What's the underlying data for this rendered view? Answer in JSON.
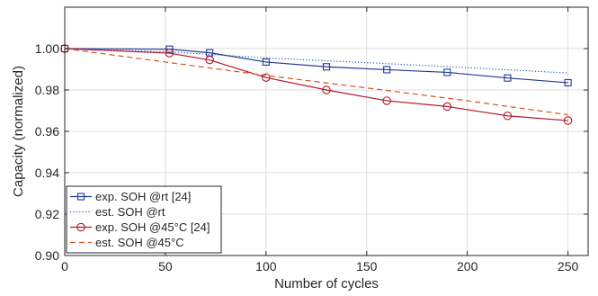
{
  "chart_data": {
    "type": "line",
    "xlabel": "Number of cycles",
    "ylabel": "Capacity (normalized)",
    "xlim": [
      0,
      260
    ],
    "ylim": [
      0.9,
      1.02
    ],
    "xticks": [
      "0",
      "50",
      "100",
      "150",
      "200",
      "250"
    ],
    "yticks": [
      "0.90",
      "0.92",
      "0.94",
      "0.96",
      "0.98",
      "1.00"
    ],
    "grid": true,
    "legend_position": "bottom-left",
    "series": [
      {
        "name": "exp. SOH @rt [24]",
        "style": "solid",
        "marker": "square",
        "color": "#1f3a93",
        "x": [
          0,
          52,
          72,
          100,
          130,
          160,
          190,
          220,
          250
        ],
        "y": [
          1.0,
          0.9997,
          0.998,
          0.9935,
          0.9912,
          0.9898,
          0.9885,
          0.9858,
          0.9835
        ]
      },
      {
        "name": "est.  SOH @rt",
        "style": "dotted",
        "marker": "none",
        "color": "#1f5fbf",
        "x": [
          0,
          50,
          100,
          150,
          200,
          250
        ],
        "y": [
          1.0,
          0.9985,
          0.9955,
          0.9932,
          0.9908,
          0.9882
        ]
      },
      {
        "name": "exp. SOH @45°C [24]",
        "style": "solid",
        "marker": "circle",
        "color": "#b5172b",
        "x": [
          0,
          52,
          72,
          100,
          130,
          160,
          190,
          220,
          250
        ],
        "y": [
          1.0,
          0.9978,
          0.9945,
          0.986,
          0.98,
          0.9748,
          0.972,
          0.9675,
          0.9652
        ]
      },
      {
        "name": "est.  SOH @45°C",
        "style": "dashed",
        "marker": "none",
        "color": "#d95319",
        "x": [
          0,
          50,
          100,
          150,
          200,
          250
        ],
        "y": [
          1.0,
          0.9935,
          0.987,
          0.981,
          0.9748,
          0.968
        ]
      }
    ]
  }
}
